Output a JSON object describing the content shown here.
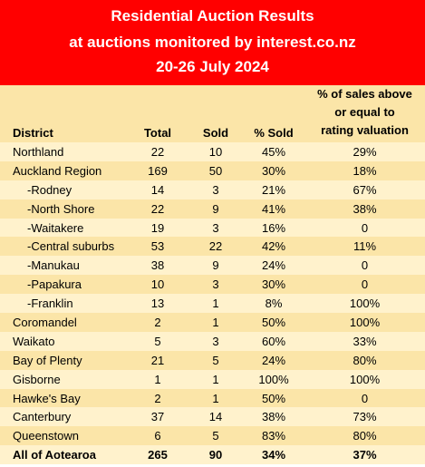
{
  "header": {
    "title": "Residential Auction Results",
    "subtitle": "at auctions monitored by interest.co.nz",
    "date_range": "20-26 July 2024"
  },
  "colors": {
    "header_bg": "#ff0000",
    "row_light": "#fff2cc",
    "row_dark": "#fbe5a8"
  },
  "chart_data": {
    "type": "table",
    "title": "Residential Auction Results",
    "columns": [
      "District",
      "Total",
      "Sold",
      "% Sold",
      "% of sales above or equal to rating valuation"
    ],
    "rating_header_lines": [
      "% of sales above",
      "or equal to",
      "rating valuation"
    ],
    "rows": [
      {
        "district": "Northland",
        "sub": false,
        "total": "22",
        "sold": "10",
        "pct_sold": "45%",
        "pct_rating": "29%"
      },
      {
        "district": "Auckland Region",
        "sub": false,
        "total": "169",
        "sold": "50",
        "pct_sold": "30%",
        "pct_rating": "18%"
      },
      {
        "district": "-Rodney",
        "sub": true,
        "total": "14",
        "sold": "3",
        "pct_sold": "21%",
        "pct_rating": "67%"
      },
      {
        "district": "-North Shore",
        "sub": true,
        "total": "22",
        "sold": "9",
        "pct_sold": "41%",
        "pct_rating": "38%"
      },
      {
        "district": "-Waitakere",
        "sub": true,
        "total": "19",
        "sold": "3",
        "pct_sold": "16%",
        "pct_rating": "0"
      },
      {
        "district": "-Central suburbs",
        "sub": true,
        "total": "53",
        "sold": "22",
        "pct_sold": "42%",
        "pct_rating": "11%"
      },
      {
        "district": "-Manukau",
        "sub": true,
        "total": "38",
        "sold": "9",
        "pct_sold": "24%",
        "pct_rating": "0"
      },
      {
        "district": "-Papakura",
        "sub": true,
        "total": "10",
        "sold": "3",
        "pct_sold": "30%",
        "pct_rating": "0"
      },
      {
        "district": "-Franklin",
        "sub": true,
        "total": "13",
        "sold": "1",
        "pct_sold": "8%",
        "pct_rating": "100%"
      },
      {
        "district": "Coromandel",
        "sub": false,
        "total": "2",
        "sold": "1",
        "pct_sold": "50%",
        "pct_rating": "100%"
      },
      {
        "district": "Waikato",
        "sub": false,
        "total": "5",
        "sold": "3",
        "pct_sold": "60%",
        "pct_rating": "33%"
      },
      {
        "district": "Bay of Plenty",
        "sub": false,
        "total": "21",
        "sold": "5",
        "pct_sold": "24%",
        "pct_rating": "80%"
      },
      {
        "district": "Gisborne",
        "sub": false,
        "total": "1",
        "sold": "1",
        "pct_sold": "100%",
        "pct_rating": "100%"
      },
      {
        "district": "Hawke's Bay",
        "sub": false,
        "total": "2",
        "sold": "1",
        "pct_sold": "50%",
        "pct_rating": "0"
      },
      {
        "district": "Canterbury",
        "sub": false,
        "total": "37",
        "sold": "14",
        "pct_sold": "38%",
        "pct_rating": "73%"
      },
      {
        "district": "Queenstown",
        "sub": false,
        "total": "6",
        "sold": "5",
        "pct_sold": "83%",
        "pct_rating": "80%"
      }
    ],
    "total_row": {
      "district": "All of Aotearoa",
      "total": "265",
      "sold": "90",
      "pct_sold": "34%",
      "pct_rating": "37%"
    }
  }
}
